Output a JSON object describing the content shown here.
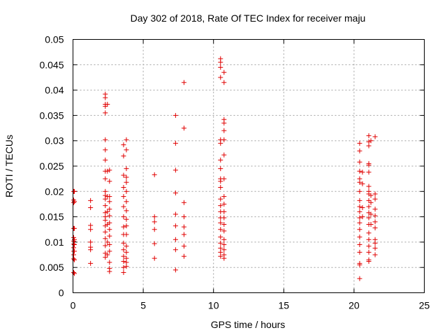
{
  "chart_data": {
    "type": "scatter",
    "title": "Day 302 of 2018, Rate Of TEC Index for receiver maju",
    "xlabel": "GPS time / hours",
    "ylabel": "ROTI / TECUs",
    "xlim": [
      0,
      25
    ],
    "ylim": [
      0,
      0.05
    ],
    "xticks": [
      0,
      5,
      10,
      15,
      20,
      25
    ],
    "xtick_labels": [
      "0",
      "5",
      "10",
      "15",
      "20",
      "25"
    ],
    "yticks": [
      0,
      0.005,
      0.01,
      0.015,
      0.02,
      0.025,
      0.03,
      0.035,
      0.04,
      0.045,
      0.05
    ],
    "ytick_labels": [
      "0",
      "0.005",
      "0.01",
      "0.015",
      "0.02",
      "0.025",
      "0.03",
      "0.035",
      "0.04",
      "0.045",
      "0.05"
    ],
    "grid": true,
    "marker": "+",
    "color": "#e00000",
    "series": [
      {
        "name": "ROTI",
        "points": [
          [
            0.05,
            0.02
          ],
          [
            0.05,
            0.0183
          ],
          [
            0.05,
            0.0178
          ],
          [
            0.05,
            0.0127
          ],
          [
            0.05,
            0.0109
          ],
          [
            0.05,
            0.0102
          ],
          [
            0.05,
            0.0096
          ],
          [
            0.05,
            0.0089
          ],
          [
            0.05,
            0.0082
          ],
          [
            0.05,
            0.0075
          ],
          [
            0.05,
            0.0067
          ],
          [
            0.05,
            0.004
          ],
          [
            0.1,
            0.02
          ],
          [
            0.1,
            0.018
          ],
          [
            0.1,
            0.0127
          ],
          [
            0.1,
            0.0105
          ],
          [
            0.1,
            0.0095
          ],
          [
            0.1,
            0.0082
          ],
          [
            0.1,
            0.0065
          ],
          [
            0.1,
            0.0038
          ],
          [
            1.25,
            0.0182
          ],
          [
            1.25,
            0.0168
          ],
          [
            1.25,
            0.0133
          ],
          [
            1.25,
            0.0125
          ],
          [
            1.25,
            0.01
          ],
          [
            1.25,
            0.009
          ],
          [
            1.25,
            0.0085
          ],
          [
            1.25,
            0.0058
          ],
          [
            2.3,
            0.0392
          ],
          [
            2.3,
            0.0385
          ],
          [
            2.3,
            0.0372
          ],
          [
            2.3,
            0.0368
          ],
          [
            2.3,
            0.0355
          ],
          [
            2.3,
            0.0302
          ],
          [
            2.3,
            0.0282
          ],
          [
            2.3,
            0.0262
          ],
          [
            2.3,
            0.024
          ],
          [
            2.3,
            0.0225
          ],
          [
            2.3,
            0.02
          ],
          [
            2.3,
            0.0192
          ],
          [
            2.3,
            0.0185
          ],
          [
            2.3,
            0.0172
          ],
          [
            2.3,
            0.0158
          ],
          [
            2.3,
            0.015
          ],
          [
            2.3,
            0.0143
          ],
          [
            2.3,
            0.0132
          ],
          [
            2.3,
            0.012
          ],
          [
            2.3,
            0.0107
          ],
          [
            2.3,
            0.0093
          ],
          [
            2.3,
            0.0078
          ],
          [
            2.3,
            0.007
          ],
          [
            2.45,
            0.0372
          ],
          [
            2.45,
            0.024
          ],
          [
            2.45,
            0.019
          ],
          [
            2.45,
            0.016
          ],
          [
            2.45,
            0.0135
          ],
          [
            2.45,
            0.01
          ],
          [
            2.45,
            0.0075
          ],
          [
            2.6,
            0.0242
          ],
          [
            2.6,
            0.022
          ],
          [
            2.6,
            0.019
          ],
          [
            2.6,
            0.018
          ],
          [
            2.6,
            0.0165
          ],
          [
            2.6,
            0.0152
          ],
          [
            2.6,
            0.0138
          ],
          [
            2.6,
            0.0125
          ],
          [
            2.6,
            0.0112
          ],
          [
            2.6,
            0.0095
          ],
          [
            2.6,
            0.0082
          ],
          [
            2.6,
            0.006
          ],
          [
            2.6,
            0.0048
          ],
          [
            2.6,
            0.0042
          ],
          [
            3.6,
            0.0292
          ],
          [
            3.6,
            0.027
          ],
          [
            3.6,
            0.0232
          ],
          [
            3.6,
            0.0208
          ],
          [
            3.6,
            0.019
          ],
          [
            3.6,
            0.017
          ],
          [
            3.6,
            0.015
          ],
          [
            3.6,
            0.013
          ],
          [
            3.6,
            0.0115
          ],
          [
            3.6,
            0.0098
          ],
          [
            3.6,
            0.0085
          ],
          [
            3.6,
            0.0072
          ],
          [
            3.6,
            0.0062
          ],
          [
            3.6,
            0.005
          ],
          [
            3.6,
            0.004
          ],
          [
            3.8,
            0.0302
          ],
          [
            3.8,
            0.0282
          ],
          [
            3.8,
            0.0245
          ],
          [
            3.8,
            0.0228
          ],
          [
            3.8,
            0.0218
          ],
          [
            3.8,
            0.02
          ],
          [
            3.8,
            0.018
          ],
          [
            3.8,
            0.0162
          ],
          [
            3.8,
            0.0145
          ],
          [
            3.8,
            0.0132
          ],
          [
            3.8,
            0.0115
          ],
          [
            3.8,
            0.0092
          ],
          [
            3.8,
            0.008
          ],
          [
            3.8,
            0.0068
          ],
          [
            3.8,
            0.006
          ],
          [
            3.8,
            0.0052
          ],
          [
            5.8,
            0.0233
          ],
          [
            5.8,
            0.015
          ],
          [
            5.8,
            0.014
          ],
          [
            5.8,
            0.0125
          ],
          [
            5.8,
            0.0097
          ],
          [
            5.8,
            0.0068
          ],
          [
            7.3,
            0.035
          ],
          [
            7.3,
            0.0295
          ],
          [
            7.3,
            0.0242
          ],
          [
            7.3,
            0.0197
          ],
          [
            7.3,
            0.0155
          ],
          [
            7.3,
            0.0132
          ],
          [
            7.3,
            0.0105
          ],
          [
            7.3,
            0.0085
          ],
          [
            7.3,
            0.0045
          ],
          [
            7.9,
            0.0415
          ],
          [
            7.9,
            0.0325
          ],
          [
            7.9,
            0.0178
          ],
          [
            7.9,
            0.015
          ],
          [
            7.9,
            0.013
          ],
          [
            7.9,
            0.0115
          ],
          [
            7.9,
            0.0092
          ],
          [
            7.9,
            0.0072
          ],
          [
            10.5,
            0.0462
          ],
          [
            10.5,
            0.0455
          ],
          [
            10.5,
            0.0445
          ],
          [
            10.5,
            0.0425
          ],
          [
            10.5,
            0.0302
          ],
          [
            10.5,
            0.0295
          ],
          [
            10.5,
            0.0262
          ],
          [
            10.5,
            0.0245
          ],
          [
            10.5,
            0.0225
          ],
          [
            10.5,
            0.022
          ],
          [
            10.5,
            0.0208
          ],
          [
            10.5,
            0.0185
          ],
          [
            10.5,
            0.0172
          ],
          [
            10.5,
            0.016
          ],
          [
            10.5,
            0.0148
          ],
          [
            10.5,
            0.0138
          ],
          [
            10.5,
            0.0125
          ],
          [
            10.5,
            0.011
          ],
          [
            10.5,
            0.0098
          ],
          [
            10.5,
            0.0088
          ],
          [
            10.5,
            0.008
          ],
          [
            10.5,
            0.0072
          ],
          [
            10.75,
            0.0435
          ],
          [
            10.75,
            0.0415
          ],
          [
            10.75,
            0.0342
          ],
          [
            10.75,
            0.0335
          ],
          [
            10.75,
            0.032
          ],
          [
            10.75,
            0.0302
          ],
          [
            10.75,
            0.0272
          ],
          [
            10.75,
            0.0225
          ],
          [
            10.75,
            0.019
          ],
          [
            10.75,
            0.0175
          ],
          [
            10.75,
            0.016
          ],
          [
            10.75,
            0.0148
          ],
          [
            10.75,
            0.0135
          ],
          [
            10.75,
            0.0122
          ],
          [
            10.75,
            0.0105
          ],
          [
            10.75,
            0.0095
          ],
          [
            10.75,
            0.0085
          ],
          [
            10.75,
            0.0075
          ],
          [
            10.75,
            0.0068
          ],
          [
            20.4,
            0.0295
          ],
          [
            20.4,
            0.028
          ],
          [
            20.4,
            0.0258
          ],
          [
            20.4,
            0.024
          ],
          [
            20.4,
            0.0225
          ],
          [
            20.4,
            0.0218
          ],
          [
            20.4,
            0.02
          ],
          [
            20.4,
            0.0182
          ],
          [
            20.4,
            0.017
          ],
          [
            20.4,
            0.016
          ],
          [
            20.4,
            0.0148
          ],
          [
            20.4,
            0.0138
          ],
          [
            20.4,
            0.0125
          ],
          [
            20.4,
            0.011
          ],
          [
            20.4,
            0.0095
          ],
          [
            20.4,
            0.008
          ],
          [
            20.4,
            0.0058
          ],
          [
            20.4,
            0.0055
          ],
          [
            20.4,
            0.0028
          ],
          [
            20.6,
            0.0238
          ],
          [
            20.6,
            0.0215
          ],
          [
            20.6,
            0.0168
          ],
          [
            20.6,
            0.015
          ],
          [
            21.05,
            0.031
          ],
          [
            21.05,
            0.0298
          ],
          [
            21.05,
            0.029
          ],
          [
            21.05,
            0.0255
          ],
          [
            21.05,
            0.0252
          ],
          [
            21.05,
            0.0238
          ],
          [
            21.05,
            0.021
          ],
          [
            21.05,
            0.02
          ],
          [
            21.05,
            0.0195
          ],
          [
            21.05,
            0.0182
          ],
          [
            21.05,
            0.017
          ],
          [
            21.05,
            0.0158
          ],
          [
            21.05,
            0.0148
          ],
          [
            21.05,
            0.0135
          ],
          [
            21.05,
            0.0118
          ],
          [
            21.05,
            0.0105
          ],
          [
            21.05,
            0.0092
          ],
          [
            21.05,
            0.008
          ],
          [
            21.05,
            0.0065
          ],
          [
            21.05,
            0.0062
          ],
          [
            21.2,
            0.03
          ],
          [
            21.2,
            0.0192
          ],
          [
            21.2,
            0.0178
          ],
          [
            21.2,
            0.0155
          ],
          [
            21.2,
            0.0135
          ],
          [
            21.5,
            0.0308
          ],
          [
            21.5,
            0.0195
          ],
          [
            21.5,
            0.0185
          ],
          [
            21.5,
            0.0165
          ],
          [
            21.5,
            0.0152
          ],
          [
            21.5,
            0.014
          ],
          [
            21.5,
            0.0128
          ],
          [
            21.5,
            0.0105
          ],
          [
            21.5,
            0.0098
          ],
          [
            21.5,
            0.0088
          ],
          [
            21.5,
            0.0075
          ]
        ]
      }
    ]
  }
}
